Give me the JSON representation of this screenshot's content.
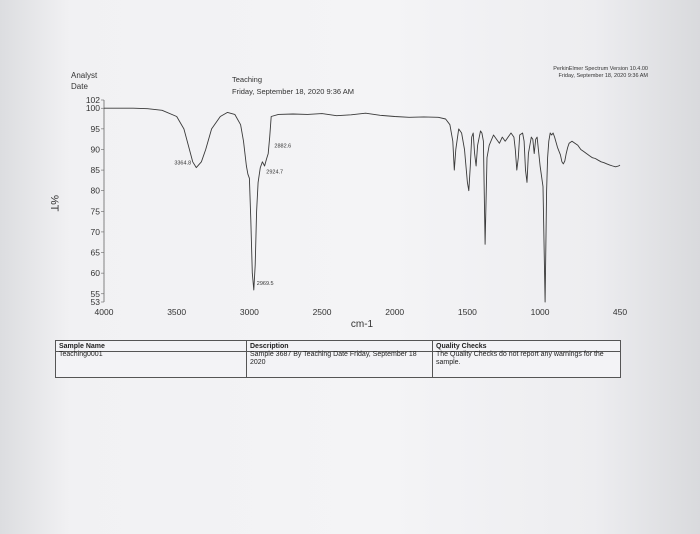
{
  "header": {
    "analyst_label": "Analyst",
    "date_label": "Date",
    "title": "Teaching",
    "datetime": "Friday, September 18, 2020 9:36 AM",
    "software": "PerkinElmer Spectrum Version 10.4.00",
    "software_datetime": "Friday, September 18, 2020 9:36 AM"
  },
  "chart_data": {
    "type": "line",
    "xlabel": "cm-1",
    "ylabel": "%T",
    "xlim": [
      4000,
      450
    ],
    "ylim": [
      53,
      102
    ],
    "x_ticks": [
      "4000",
      "3500",
      "3000",
      "2500",
      "2000",
      "1500",
      "1000",
      "450"
    ],
    "y_ticks": [
      "102",
      "100",
      "95",
      "90",
      "85",
      "80",
      "75",
      "70",
      "65",
      "60",
      "55",
      "53"
    ],
    "series": [
      {
        "x": [
          4000,
          3800,
          3700,
          3600,
          3500,
          3450,
          3420,
          3390,
          3364.8,
          3330,
          3300,
          3260,
          3200,
          3150,
          3100,
          3060,
          3040,
          3020,
          3010,
          3000,
          2990,
          2980,
          2969.5,
          2960,
          2950,
          2940,
          2924.7,
          2910,
          2895,
          2882.6,
          2870,
          2860,
          2850,
          2800,
          2700,
          2600,
          2500,
          2400,
          2300,
          2200,
          2100,
          2000,
          1900,
          1800,
          1700,
          1650,
          1620,
          1600,
          1590,
          1580,
          1560,
          1540,
          1520,
          1500,
          1490,
          1480,
          1470,
          1460,
          1450,
          1440,
          1430,
          1410,
          1400,
          1390,
          1378,
          1365,
          1350,
          1320,
          1300,
          1280,
          1260,
          1240,
          1200,
          1180,
          1170,
          1160,
          1150,
          1140,
          1120,
          1110,
          1100,
          1090,
          1080,
          1060,
          1050,
          1040,
          1030,
          1020,
          1000,
          980,
          965,
          955,
          948,
          940,
          930,
          920,
          910,
          900,
          880,
          860,
          850,
          840,
          830,
          820,
          810,
          800,
          780,
          760,
          740,
          720,
          700,
          680,
          660,
          640,
          620,
          600,
          580,
          560,
          540,
          520,
          500,
          480,
          460,
          450
        ],
        "y": [
          100,
          100,
          99.9,
          99.5,
          98,
          95,
          91,
          87,
          85.6,
          87,
          90,
          95,
          98,
          99,
          98.5,
          96,
          92,
          86,
          84,
          83,
          73,
          60,
          55.9,
          62,
          75,
          82,
          85.6,
          87,
          86,
          87.6,
          89,
          93,
          98,
          98.5,
          98.6,
          98.5,
          98.7,
          98.2,
          98.4,
          98.8,
          98.3,
          98,
          97.8,
          97.9,
          97.8,
          97.4,
          96,
          92,
          85,
          90,
          95,
          94,
          90,
          82,
          80,
          86,
          93,
          94,
          89,
          86,
          91,
          94.5,
          94,
          92,
          67,
          88,
          91,
          93.5,
          92.5,
          91.5,
          93,
          92,
          94,
          93,
          90,
          85,
          88,
          93.5,
          94,
          92,
          85,
          82,
          89,
          93,
          92.5,
          89,
          92.5,
          93,
          86,
          81,
          53,
          80,
          88,
          92,
          94,
          93.5,
          94,
          93,
          90.5,
          88.7,
          87,
          86.5,
          87.2,
          89,
          90.5,
          91.5,
          92,
          91.5,
          91,
          90,
          89.5,
          89,
          88.5,
          88,
          87.8,
          87.4,
          87,
          86.8,
          86.5,
          86.2,
          86,
          85.8,
          86,
          86.2
        ]
      }
    ],
    "annotations": [
      {
        "text": "3364.8",
        "x": 3364.8,
        "y": 85.6
      },
      {
        "text": "2882.6",
        "x": 2882.6,
        "y": 87.6
      },
      {
        "text": "2924.7",
        "x": 2924.7,
        "y": 85.6
      },
      {
        "text": "2969.5",
        "x": 2969.5,
        "y": 55.9
      }
    ],
    "grid": false
  },
  "table": {
    "sample_name_label": "Sample Name",
    "sample_name": "Teaching0001",
    "description_label": "Description",
    "description": "Sample 3687 By Teaching Date Friday, September 18 2020",
    "quality_label": "Quality Checks",
    "quality": "The Quality Checks do not report any warnings for the sample."
  }
}
